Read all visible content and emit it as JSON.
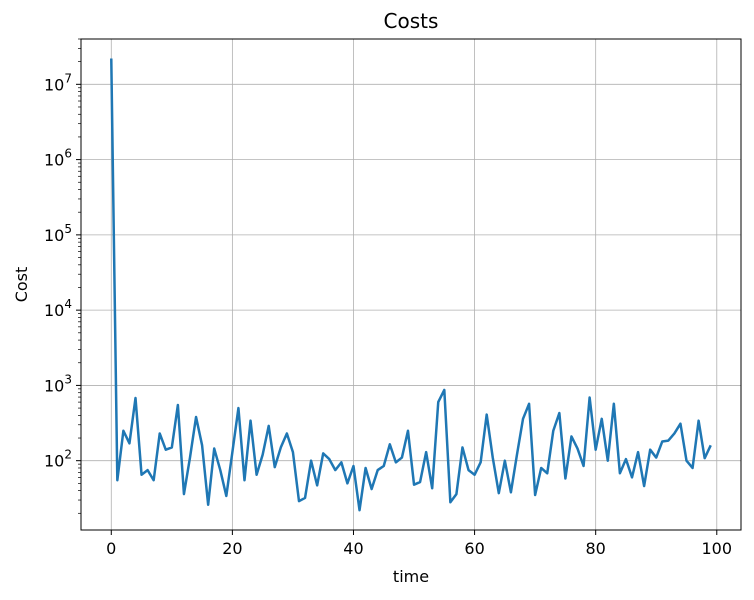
{
  "chart_data": {
    "type": "line",
    "title": "Costs",
    "xlabel": "time",
    "ylabel": "Cost",
    "yscale": "log",
    "grid": true,
    "xlim": [
      -5,
      104
    ],
    "ylim": [
      12,
      40000000
    ],
    "xticks": [
      0,
      20,
      40,
      60,
      80,
      100
    ],
    "xtick_labels": [
      "0",
      "20",
      "40",
      "60",
      "80",
      "100"
    ],
    "yticks": [
      100,
      1000,
      10000,
      100000,
      1000000,
      10000000
    ],
    "ytick_exponents": [
      "2",
      "3",
      "4",
      "5",
      "6",
      "7"
    ],
    "ytick_base": "10",
    "line_color": "#1f77b4",
    "series": [
      {
        "x": [
          0,
          1,
          2,
          3,
          4,
          5,
          6,
          7,
          8,
          9,
          10,
          11,
          12,
          13,
          14,
          15,
          16,
          17,
          18,
          19,
          20,
          21,
          22,
          23,
          24,
          25,
          26,
          27,
          28,
          29,
          30,
          31,
          32,
          33,
          34,
          35,
          36,
          37,
          38,
          39,
          40,
          41,
          42,
          43,
          44,
          45,
          46,
          47,
          48,
          49,
          50,
          51,
          52,
          53,
          54,
          55,
          56,
          57,
          58,
          59,
          60,
          61,
          62,
          63,
          64,
          65,
          66,
          67,
          68,
          69,
          70,
          71,
          72,
          73,
          74,
          75,
          76,
          77,
          78,
          79,
          80,
          81,
          82,
          83,
          84,
          85,
          86,
          87,
          88,
          89,
          90,
          91,
          92,
          93,
          94,
          95,
          96,
          97,
          98,
          99
        ],
        "y": [
          22000000,
          55,
          250,
          170,
          680,
          65,
          75,
          55,
          230,
          140,
          150,
          550,
          36,
          110,
          380,
          160,
          26,
          145,
          75,
          34,
          130,
          500,
          55,
          340,
          65,
          120,
          290,
          82,
          150,
          230,
          130,
          29,
          32,
          100,
          47,
          125,
          105,
          75,
          95,
          50,
          85,
          22,
          80,
          42,
          75,
          85,
          165,
          95,
          110,
          250,
          48,
          52,
          130,
          43,
          600,
          870,
          28,
          36,
          150,
          75,
          65,
          95,
          410,
          110,
          37,
          100,
          38,
          120,
          360,
          570,
          35,
          80,
          68,
          250,
          430,
          58,
          210,
          145,
          85,
          690,
          140,
          360,
          100,
          570,
          68,
          105,
          60,
          130,
          46,
          140,
          110,
          180,
          185,
          230,
          310,
          100,
          80,
          340,
          108,
          160
        ]
      }
    ]
  }
}
